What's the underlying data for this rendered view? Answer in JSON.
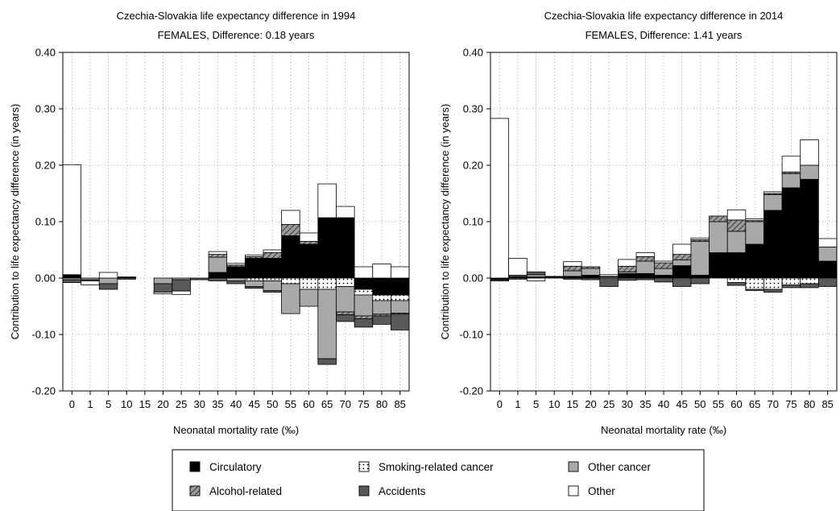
{
  "chart_data": {
    "type": "bar",
    "stacked": true,
    "grid": true,
    "legend_placement": "bottom",
    "categories": [
      "0",
      "1",
      "5",
      "10",
      "15",
      "20",
      "25",
      "30",
      "35",
      "40",
      "45",
      "50",
      "55",
      "60",
      "65",
      "70",
      "75",
      "80",
      "85"
    ],
    "ylim": [
      -0.2,
      0.4
    ],
    "yticks": [
      "-0.20",
      "-0.10",
      "0.00",
      "0.10",
      "0.20",
      "0.30",
      "0.40"
    ],
    "ylabel": "Contribution to life expectancy difference (in years)",
    "xlabel": "Neonatal mortality rate (‰)",
    "causes": [
      {
        "key": "circ",
        "name": "Circulatory",
        "color": "#000000",
        "pattern": "solid"
      },
      {
        "key": "smok",
        "name": "Smoking-related cancer",
        "color": "#ffffff",
        "pattern": "dots"
      },
      {
        "key": "other_cancer",
        "name": "Other cancer",
        "color": "#a9a9a9",
        "pattern": "solid"
      },
      {
        "key": "alc",
        "name": "Alcohol-related",
        "color": "#888888",
        "pattern": "hatch"
      },
      {
        "key": "acc",
        "name": "Accidents",
        "color": "#595959",
        "pattern": "solid"
      },
      {
        "key": "other",
        "name": "Other",
        "color": "#ffffff",
        "pattern": "solid"
      }
    ],
    "panels": [
      {
        "title_line1": "Czechia-Slovakia life expectancy difference in 1994",
        "title_line2": "FEMALES, Difference: 0.18 years",
        "series": {
          "circ": [
            0.005,
            0,
            0,
            0.002,
            0,
            0,
            0,
            0,
            0.01,
            0.02,
            0.035,
            0.035,
            0.075,
            0.06,
            0.107,
            0.107,
            -0.02,
            -0.03,
            -0.03
          ],
          "smok": [
            0,
            0,
            0,
            0,
            0,
            0,
            0,
            0,
            0,
            0,
            -0.005,
            -0.005,
            -0.01,
            -0.02,
            -0.02,
            -0.015,
            -0.01,
            -0.01,
            -0.01
          ],
          "other_cancer": [
            -0.003,
            -0.003,
            -0.01,
            0,
            0,
            -0.01,
            -0.003,
            0,
            0.027,
            -0.005,
            -0.01,
            -0.017,
            -0.053,
            -0.03,
            -0.123,
            -0.045,
            -0.037,
            -0.024,
            -0.022
          ],
          "alc": [
            0.001,
            0,
            0,
            0,
            0,
            0,
            0,
            0,
            0.005,
            0.003,
            0.003,
            0.01,
            0.02,
            0.005,
            0,
            -0.005,
            -0.005,
            -0.003,
            -0.002
          ],
          "acc": [
            -0.005,
            -0.002,
            -0.01,
            -0.002,
            0,
            -0.015,
            -0.02,
            -0.003,
            -0.005,
            -0.005,
            -0.003,
            -0.003,
            0,
            0,
            -0.01,
            -0.012,
            -0.015,
            -0.015,
            -0.028
          ],
          "other": [
            0.195,
            -0.007,
            0.01,
            0,
            0,
            -0.003,
            -0.006,
            0,
            0.005,
            0.003,
            0.003,
            0.005,
            0.025,
            0.015,
            0.06,
            0.02,
            0.02,
            0.025,
            0.02
          ]
        }
      },
      {
        "title_line1": "Czechia-Slovakia life expectancy difference in 2014",
        "title_line2": "FEMALES, Difference: 1.41 years",
        "series": {
          "circ": [
            -0.003,
            0.003,
            0.002,
            0.002,
            0.003,
            0.005,
            0,
            0.008,
            0.008,
            0.005,
            0.022,
            0.005,
            0.045,
            0.045,
            0.06,
            0.12,
            0.16,
            0.175,
            0.03
          ],
          "smok": [
            0,
            0,
            0,
            0,
            0,
            0,
            0,
            0,
            0,
            0,
            0,
            0,
            0,
            -0.008,
            -0.02,
            -0.02,
            -0.012,
            -0.01,
            0
          ],
          "other_cancer": [
            0,
            0.002,
            0.004,
            0,
            0.01,
            0.012,
            0.002,
            0.003,
            0.022,
            0.012,
            0.01,
            0.06,
            0.055,
            0.038,
            0.04,
            0.028,
            0.025,
            0.025,
            0.025
          ],
          "alc": [
            0,
            0,
            0,
            0,
            0.008,
            0.003,
            0.001,
            0.01,
            0.008,
            0.01,
            0.01,
            0.003,
            0.01,
            0.02,
            0.002,
            0.002,
            0.003,
            0,
            0
          ],
          "acc": [
            -0.002,
            -0.002,
            0.005,
            0.001,
            -0.002,
            -0.003,
            -0.015,
            -0.004,
            -0.003,
            -0.007,
            -0.015,
            -0.01,
            0,
            -0.005,
            -0.002,
            -0.005,
            -0.005,
            -0.007,
            -0.015
          ],
          "other": [
            0.283,
            0.03,
            -0.005,
            0,
            0.008,
            0,
            0.003,
            0.012,
            0.007,
            0.003,
            0.018,
            0.003,
            0,
            0.018,
            0.003,
            0.003,
            0.028,
            0.045,
            0.015
          ]
        }
      }
    ]
  }
}
